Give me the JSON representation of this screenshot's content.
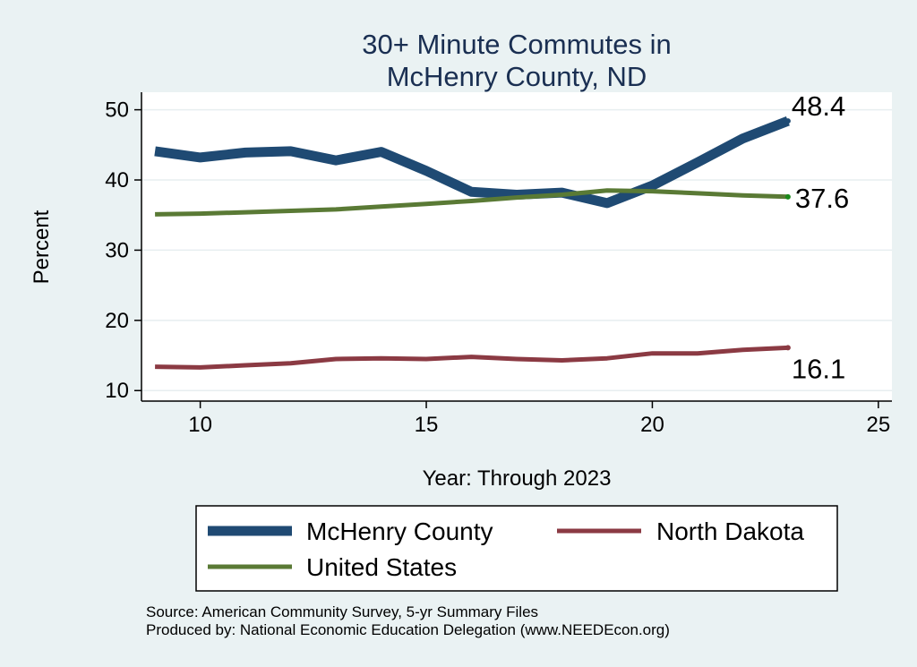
{
  "chart_data": {
    "type": "line",
    "title": [
      "30+ Minute Commutes in",
      "McHenry County, ND"
    ],
    "xlabel": "Year: Through 2023",
    "ylabel": "Percent",
    "xlim": [
      8.7,
      25.3
    ],
    "ylim": [
      8.5,
      52.5
    ],
    "xticks": [
      10,
      15,
      20,
      25
    ],
    "yticks": [
      10,
      20,
      30,
      40,
      50
    ],
    "grid": true,
    "legend_position": "bottom",
    "series": [
      {
        "name": "McHenry County",
        "color": "#1f4a73",
        "x": [
          9,
          10,
          11,
          12,
          13,
          14,
          15,
          16,
          17,
          18,
          19,
          20,
          21,
          22,
          23
        ],
        "y": [
          44.1,
          43.2,
          43.9,
          44.1,
          42.8,
          44.0,
          41.3,
          38.3,
          37.9,
          38.2,
          36.7,
          39.2,
          42.5,
          45.9,
          48.4
        ],
        "end_label": "48.4"
      },
      {
        "name": "North Dakota",
        "color": "#8b3a43",
        "x": [
          9,
          10,
          11,
          12,
          13,
          14,
          15,
          16,
          17,
          18,
          19,
          20,
          21,
          22,
          23
        ],
        "y": [
          13.4,
          13.3,
          13.6,
          13.9,
          14.5,
          14.6,
          14.5,
          14.8,
          14.5,
          14.3,
          14.6,
          15.3,
          15.3,
          15.8,
          16.1
        ],
        "end_label": "16.1"
      },
      {
        "name": "United States",
        "color": "#5a7a35",
        "x": [
          9,
          10,
          11,
          12,
          13,
          14,
          15,
          16,
          17,
          18,
          19,
          20,
          21,
          22,
          23
        ],
        "y": [
          35.1,
          35.2,
          35.4,
          35.6,
          35.8,
          36.2,
          36.6,
          37.0,
          37.5,
          37.9,
          38.5,
          38.4,
          38.1,
          37.8,
          37.6
        ],
        "end_label": "37.6"
      }
    ],
    "notes": [
      "Source: American Community Survey, 5-yr Summary Files",
      "Produced by: National Economic Education Delegation (www.NEEDEcon.org)"
    ]
  }
}
